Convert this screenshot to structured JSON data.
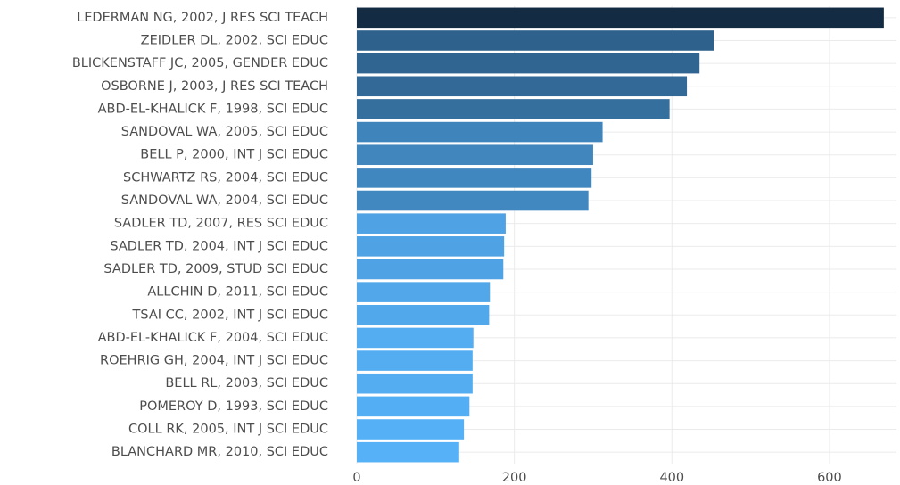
{
  "chart_data": {
    "type": "bar",
    "orientation": "horizontal",
    "categories": [
      "LEDERMAN NG, 2002, J RES SCI TEACH",
      "ZEIDLER DL, 2002, SCI EDUC",
      "BLICKENSTAFF JC, 2005, GENDER EDUC",
      "OSBORNE J, 2003, J RES SCI TEACH",
      "ABD-EL-KHALICK F, 1998, SCI EDUC",
      "SANDOVAL WA, 2005, SCI EDUC",
      "BELL P, 2000, INT J SCI EDUC",
      "SCHWARTZ RS, 2004, SCI EDUC",
      "SANDOVAL WA, 2004, SCI EDUC",
      "SADLER TD, 2007, RES SCI EDUC",
      "SADLER TD, 2004, INT J SCI EDUC",
      "SADLER TD, 2009, STUD SCI EDUC",
      "ALLCHIN D, 2011, SCI EDUC",
      "TSAI CC, 2002, INT J SCI EDUC",
      "ABD-EL-KHALICK F, 2004, SCI EDUC",
      "ROEHRIG GH, 2004, INT J SCI EDUC",
      "BELL RL, 2003, SCI EDUC",
      "POMEROY D, 1993, SCI EDUC",
      "COLL RK, 2005, INT J SCI EDUC",
      "BLANCHARD MR, 2010, SCI EDUC"
    ],
    "values": [
      669,
      453,
      435,
      419,
      397,
      312,
      300,
      298,
      294,
      189,
      187,
      186,
      169,
      168,
      148,
      147,
      147,
      143,
      136,
      130
    ],
    "color_scale": [
      "#56b1f7",
      "#132b43"
    ],
    "xlim": [
      0,
      685
    ],
    "xticks": [
      0,
      200,
      400,
      600
    ],
    "grid": true
  }
}
